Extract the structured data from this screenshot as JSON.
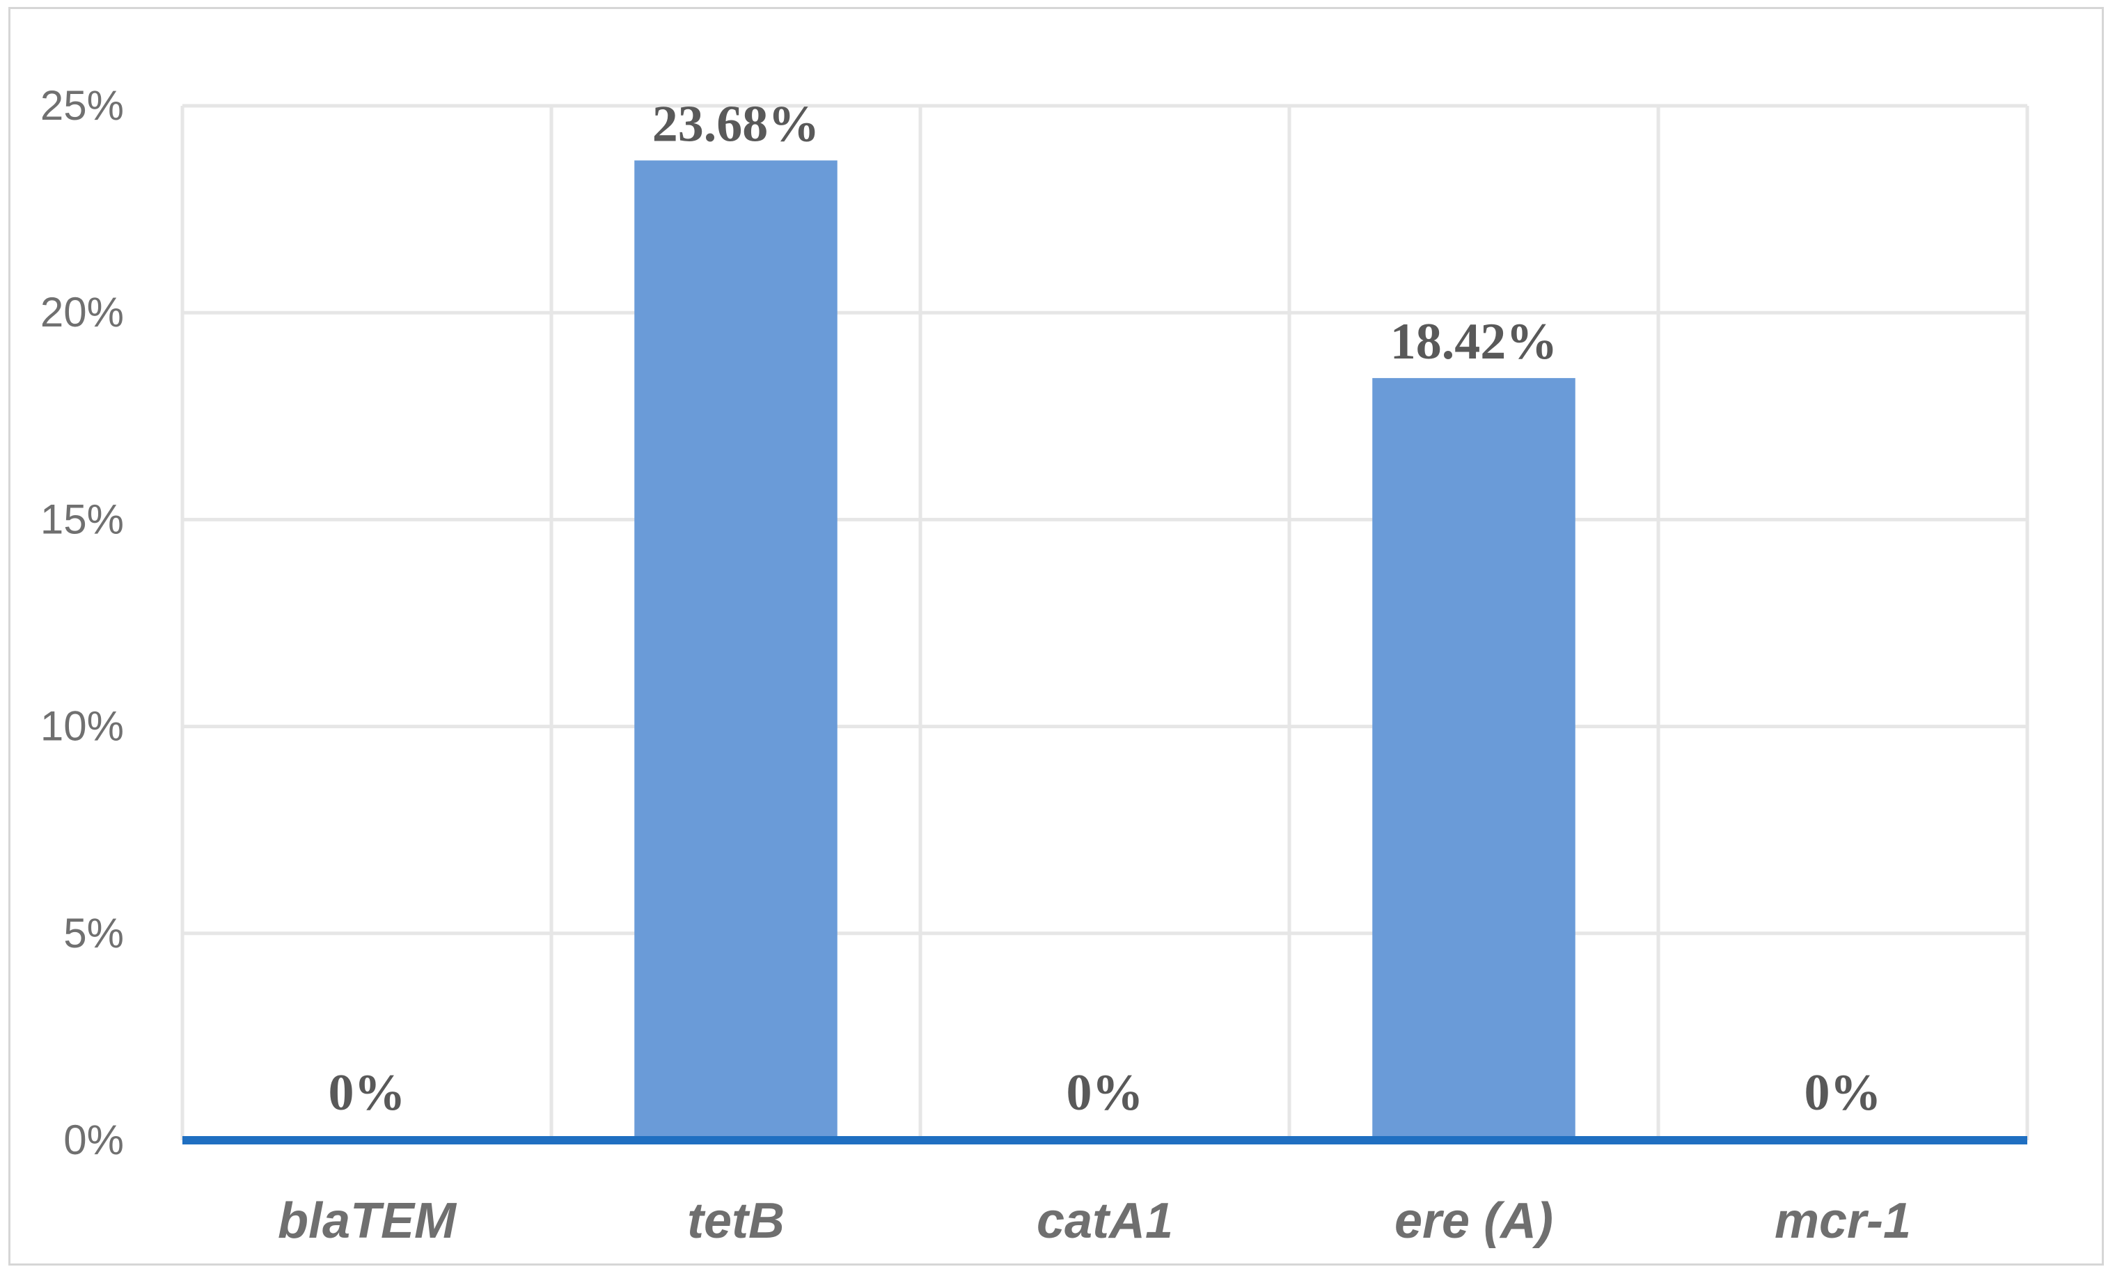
{
  "chart_data": {
    "type": "bar",
    "categories": [
      "blaTEM",
      "tetB",
      "catA1",
      "ere (A)",
      "mcr-1"
    ],
    "values": [
      0,
      23.68,
      0,
      18.42,
      0
    ],
    "data_labels": [
      "0%",
      "23.68%",
      "0%",
      "18.42%",
      "0%"
    ],
    "title": "",
    "xlabel": "",
    "ylabel": "",
    "ylim": [
      0,
      25
    ],
    "yticks": [
      0,
      5,
      10,
      15,
      20,
      25
    ],
    "ytick_labels": [
      "0%",
      "5%",
      "10%",
      "15%",
      "20%",
      "25%"
    ],
    "grid": true,
    "legend": "none",
    "colors": {
      "bar": "#6a9bd8",
      "axis": "#1f6fc1",
      "grid": "#e6e6e6",
      "frame": "#d6d6d6"
    }
  }
}
